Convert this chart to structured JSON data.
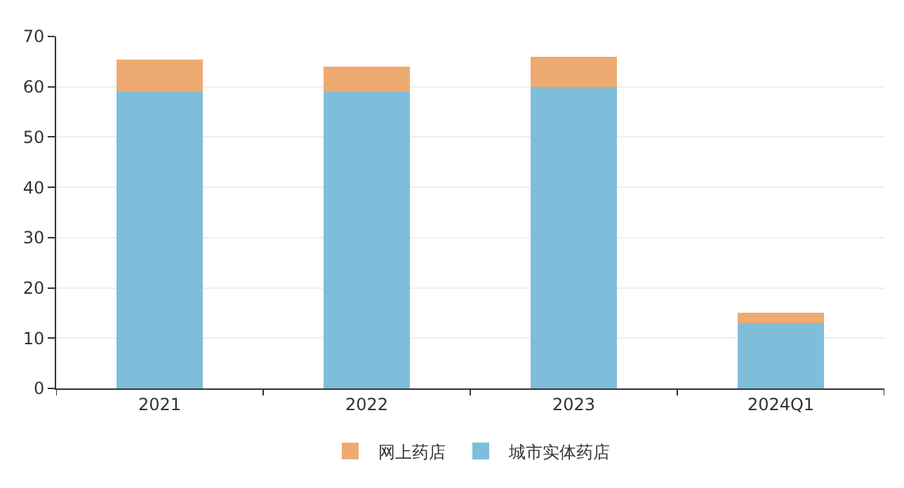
{
  "chart_data": {
    "type": "bar",
    "stacked": true,
    "categories": [
      "2021",
      "2022",
      "2023",
      "2024Q1"
    ],
    "series": [
      {
        "name": "城市实体药店",
        "color": "#7ebedb",
        "values": [
          59,
          59,
          60,
          13
        ]
      },
      {
        "name": "网上药店",
        "color": "#edab72",
        "values": [
          6.4,
          5,
          6,
          2
        ]
      }
    ],
    "ylim": [
      0,
      70
    ],
    "yticks": [
      0,
      10,
      20,
      30,
      40,
      50,
      60,
      70
    ],
    "grid": "y",
    "legend": "bottom"
  }
}
